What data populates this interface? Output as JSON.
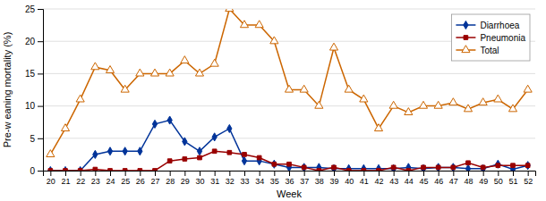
{
  "chart_data": {
    "type": "line",
    "xlabel": "Week",
    "ylabel": "Pre-w eaning mortality (%)",
    "x": [
      20,
      21,
      22,
      23,
      24,
      25,
      26,
      27,
      28,
      29,
      30,
      31,
      32,
      33,
      34,
      35,
      36,
      37,
      38,
      39,
      40,
      41,
      42,
      43,
      44,
      45,
      46,
      47,
      48,
      49,
      50,
      51,
      52
    ],
    "series": [
      {
        "name": "Diarrhoea",
        "color": "#003399",
        "marker": "diamond",
        "values": [
          0,
          0,
          0,
          2.5,
          3.0,
          3.0,
          3.0,
          7.2,
          7.8,
          4.5,
          3.0,
          5.2,
          6.5,
          1.5,
          1.5,
          1.0,
          0.5,
          0.5,
          0.5,
          0.3,
          0.3,
          0.3,
          0.3,
          0.3,
          0.5,
          0.3,
          0.5,
          0.5,
          0.3,
          0.3,
          1.0,
          0.2,
          0.8
        ]
      },
      {
        "name": "Pneumonia",
        "color": "#990000",
        "marker": "square",
        "values": [
          0,
          0,
          0,
          0.2,
          0,
          0,
          0,
          0,
          1.5,
          1.8,
          2.0,
          3.0,
          2.8,
          2.5,
          2.0,
          1.0,
          1.0,
          0.5,
          0,
          0.5,
          0,
          0,
          0,
          0.5,
          0,
          0.5,
          0.5,
          0.5,
          1.2,
          0.5,
          0.8,
          0.8,
          0.8
        ]
      },
      {
        "name": "Total",
        "color": "#cc6600",
        "marker": "triangle-open",
        "values": [
          2.5,
          6.5,
          11.0,
          16.0,
          15.5,
          12.5,
          15.0,
          15.0,
          15.0,
          17.0,
          15.0,
          16.5,
          25.0,
          22.5,
          22.5,
          20.0,
          12.5,
          12.5,
          10.0,
          19.0,
          12.5,
          11.0,
          6.5,
          10.0,
          9.0,
          10.0,
          10.0,
          10.5,
          9.5,
          10.5,
          11.0,
          9.5,
          12.5
        ]
      }
    ],
    "xlim": [
      19.5,
      52.5
    ],
    "xticks": [
      20,
      21,
      22,
      23,
      24,
      25,
      26,
      27,
      28,
      29,
      30,
      31,
      32,
      33,
      34,
      35,
      36,
      37,
      38,
      39,
      40,
      41,
      42,
      43,
      44,
      45,
      46,
      47,
      48,
      49,
      50,
      51,
      52
    ],
    "ylim": [
      0,
      25
    ],
    "yticks": [
      0,
      5,
      10,
      15,
      20,
      25
    ],
    "grid": true,
    "legend": "top-right"
  }
}
